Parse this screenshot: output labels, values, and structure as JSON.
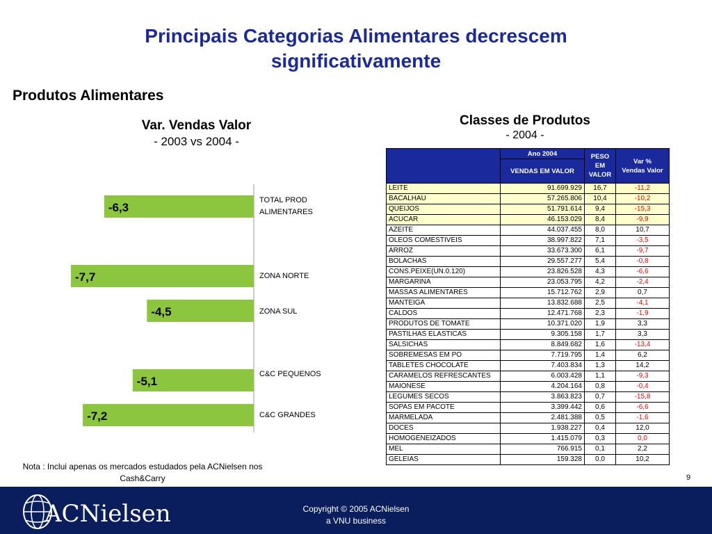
{
  "slide": {
    "title": "Principais Categorias Alimentares decrescem significativamente",
    "subtitle": "Produtos Alimentares",
    "page_number": "9",
    "note": "Nota : Inclui apenas os mercados estudados pela ACNielsen nos Cash&Carry",
    "copyright_line1": "Copyright © 2005 ACNielsen",
    "copyright_line2": "a VNU business",
    "logo_text": "ACNielsen"
  },
  "chart_data": {
    "type": "bar",
    "title": "Var. Vendas Valor",
    "subtitle": "- 2003 vs 2004 -",
    "categories": [
      "TOTAL PROD ALIMENTARES",
      "ZONA NORTE",
      "ZONA SUL",
      "C&C PEQUENOS",
      "C&C GRANDES"
    ],
    "values": [
      -6.3,
      -7.7,
      -4.5,
      -5.1,
      -7.2
    ],
    "value_labels": [
      "-6,3",
      "-7,7",
      "-4,5",
      "-5,1",
      "-7,2"
    ],
    "orientation": "horizontal",
    "bar_color": "#8cc63f",
    "grid": false
  },
  "table": {
    "title": "Classes de Produtos",
    "subtitle": "- 2004 -",
    "header_group": "Ano 2004",
    "col_vendas": "VENDAS EM VALOR",
    "col_peso_1": "PESO",
    "col_peso_2": "EM",
    "col_peso_3": "VALOR",
    "col_var_1": "Var %",
    "col_var_2": "Vendas Valor",
    "header_color": "#1a2a9c",
    "highlight_color": "#ffffcc",
    "negative_color": "#ff0000",
    "rows": [
      {
        "name": "LEITE",
        "vendas": "91.699.929",
        "peso": "16,7",
        "var": "-11,2",
        "hl": true,
        "neg": true
      },
      {
        "name": "BACALHAU",
        "vendas": "57.265.806",
        "peso": "10,4",
        "var": "-10,2",
        "hl": true,
        "neg": true
      },
      {
        "name": "QUEIJOS",
        "vendas": "51.791.614",
        "peso": "9,4",
        "var": "-15,3",
        "hl": true,
        "neg": true
      },
      {
        "name": "ACUCAR",
        "vendas": "46.153.029",
        "peso": "8,4",
        "var": "-9,9",
        "hl": true,
        "neg": true
      },
      {
        "name": "AZEITE",
        "vendas": "44.037.455",
        "peso": "8,0",
        "var": "10,7",
        "hl": false,
        "neg": false
      },
      {
        "name": "OLEOS COMESTIVEIS",
        "vendas": "38.997.822",
        "peso": "7,1",
        "var": "-3,5",
        "hl": false,
        "neg": true
      },
      {
        "name": "ARROZ",
        "vendas": "33.673.300",
        "peso": "6,1",
        "var": "-9,7",
        "hl": false,
        "neg": true
      },
      {
        "name": "BOLACHAS",
        "vendas": "29.557.277",
        "peso": "5,4",
        "var": "-0,8",
        "hl": false,
        "neg": true
      },
      {
        "name": "CONS.PEIXE(UN.0.120)",
        "vendas": "23.826.528",
        "peso": "4,3",
        "var": "-6,6",
        "hl": false,
        "neg": true
      },
      {
        "name": "MARGARINA",
        "vendas": "23.053.795",
        "peso": "4,2",
        "var": "-2,4",
        "hl": false,
        "neg": true
      },
      {
        "name": "MASSAS ALIMENTARES",
        "vendas": "15.712.762",
        "peso": "2,9",
        "var": "0,7",
        "hl": false,
        "neg": false
      },
      {
        "name": "MANTEIGA",
        "vendas": "13.832.688",
        "peso": "2,5",
        "var": "-4,1",
        "hl": false,
        "neg": true
      },
      {
        "name": "CALDOS",
        "vendas": "12.471.768",
        "peso": "2,3",
        "var": "-1,9",
        "hl": false,
        "neg": true
      },
      {
        "name": "PRODUTOS DE TOMATE",
        "vendas": "10.371.020",
        "peso": "1,9",
        "var": "3,3",
        "hl": false,
        "neg": false
      },
      {
        "name": "PASTILHAS ELASTICAS",
        "vendas": "9.305.158",
        "peso": "1,7",
        "var": "3,3",
        "hl": false,
        "neg": false
      },
      {
        "name": "SALSICHAS",
        "vendas": "8.849.682",
        "peso": "1,6",
        "var": "-13,4",
        "hl": false,
        "neg": true
      },
      {
        "name": "SOBREMESAS EM PO",
        "vendas": "7.719.795",
        "peso": "1,4",
        "var": "6,2",
        "hl": false,
        "neg": false
      },
      {
        "name": "TABLETES CHOCOLATE",
        "vendas": "7.403.834",
        "peso": "1,3",
        "var": "14,2",
        "hl": false,
        "neg": false
      },
      {
        "name": "CARAMELOS REFRESCANTES",
        "vendas": "6.003.428",
        "peso": "1,1",
        "var": "-9,3",
        "hl": false,
        "neg": true
      },
      {
        "name": "MAIONESE",
        "vendas": "4.204.164",
        "peso": "0,8",
        "var": "-0,4",
        "hl": false,
        "neg": true
      },
      {
        "name": "LEGUMES SECOS",
        "vendas": "3.863.823",
        "peso": "0,7",
        "var": "-15,8",
        "hl": false,
        "neg": true
      },
      {
        "name": "SOPAS EM PACOTE",
        "vendas": "3.399.442",
        "peso": "0,6",
        "var": "-6,6",
        "hl": false,
        "neg": true
      },
      {
        "name": "MARMELADA",
        "vendas": "2.481.388",
        "peso": "0,5",
        "var": "-1,6",
        "hl": false,
        "neg": true
      },
      {
        "name": "DOCES",
        "vendas": "1.938.227",
        "peso": "0,4",
        "var": "12,0",
        "hl": false,
        "neg": false
      },
      {
        "name": "HOMOGENEIZADOS",
        "vendas": "1.415.079",
        "peso": "0,3",
        "var": "0,0",
        "hl": false,
        "neg": true
      },
      {
        "name": "MEL",
        "vendas": "766.915",
        "peso": "0,1",
        "var": "2,2",
        "hl": false,
        "neg": false
      },
      {
        "name": "GELEIAS",
        "vendas": "159.328",
        "peso": "0,0",
        "var": "10,2",
        "hl": false,
        "neg": false
      }
    ]
  }
}
